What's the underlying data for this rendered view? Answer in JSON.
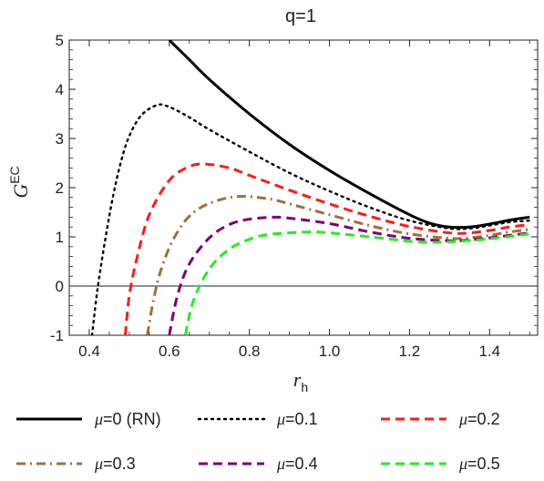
{
  "chart_data": {
    "type": "line",
    "title": "q=1",
    "xlabel": "r",
    "xlabel_sub": "h",
    "ylabel": "G",
    "ylabel_sup": "EC",
    "xlim": [
      0.35,
      1.52
    ],
    "ylim": [
      -1,
      5
    ],
    "xticks": [
      "0.4",
      "0.6",
      "0.8",
      "1.0",
      "1.2",
      "1.4"
    ],
    "yticks": [
      "-1",
      "0",
      "1",
      "2",
      "3",
      "4",
      "5"
    ],
    "legend_position": "bottom",
    "reference_line_y": 0,
    "series": [
      {
        "name": "μ=0 (RN)",
        "color": "#000000",
        "dash": "solid",
        "points": [
          [
            0.6,
            5.0
          ],
          [
            0.65,
            4.6
          ],
          [
            0.7,
            4.2
          ],
          [
            0.8,
            3.5
          ],
          [
            0.9,
            2.88
          ],
          [
            1.0,
            2.35
          ],
          [
            1.1,
            1.88
          ],
          [
            1.2,
            1.45
          ],
          [
            1.25,
            1.28
          ],
          [
            1.3,
            1.2
          ],
          [
            1.35,
            1.2
          ],
          [
            1.4,
            1.26
          ],
          [
            1.45,
            1.34
          ],
          [
            1.5,
            1.4
          ]
        ]
      },
      {
        "name": "μ=0.1",
        "color": "#000000",
        "dash": "dotted",
        "points": [
          [
            0.407,
            -1.0
          ],
          [
            0.42,
            -0.1
          ],
          [
            0.44,
            0.95
          ],
          [
            0.46,
            1.85
          ],
          [
            0.48,
            2.55
          ],
          [
            0.5,
            3.05
          ],
          [
            0.53,
            3.47
          ],
          [
            0.57,
            3.68
          ],
          [
            0.6,
            3.64
          ],
          [
            0.65,
            3.43
          ],
          [
            0.7,
            3.18
          ],
          [
            0.8,
            2.73
          ],
          [
            0.9,
            2.3
          ],
          [
            1.0,
            1.93
          ],
          [
            1.1,
            1.6
          ],
          [
            1.2,
            1.33
          ],
          [
            1.3,
            1.17
          ],
          [
            1.35,
            1.17
          ],
          [
            1.4,
            1.23
          ],
          [
            1.45,
            1.3
          ],
          [
            1.5,
            1.33
          ]
        ]
      },
      {
        "name": "μ=0.2",
        "color": "#ff1a1a",
        "dash": "dashed",
        "points": [
          [
            0.49,
            -1.0
          ],
          [
            0.5,
            -0.2
          ],
          [
            0.52,
            0.6
          ],
          [
            0.55,
            1.45
          ],
          [
            0.6,
            2.15
          ],
          [
            0.65,
            2.43
          ],
          [
            0.69,
            2.48
          ],
          [
            0.75,
            2.4
          ],
          [
            0.8,
            2.25
          ],
          [
            0.9,
            1.95
          ],
          [
            1.0,
            1.67
          ],
          [
            1.1,
            1.42
          ],
          [
            1.2,
            1.21
          ],
          [
            1.3,
            1.08
          ],
          [
            1.35,
            1.08
          ],
          [
            1.4,
            1.13
          ],
          [
            1.45,
            1.2
          ],
          [
            1.5,
            1.25
          ]
        ]
      },
      {
        "name": "μ=0.3",
        "color": "#a0703c",
        "dash": "dashdot",
        "points": [
          [
            0.545,
            -1.0
          ],
          [
            0.56,
            -0.3
          ],
          [
            0.58,
            0.35
          ],
          [
            0.61,
            0.95
          ],
          [
            0.65,
            1.42
          ],
          [
            0.7,
            1.68
          ],
          [
            0.77,
            1.82
          ],
          [
            0.85,
            1.77
          ],
          [
            0.9,
            1.67
          ],
          [
            1.0,
            1.45
          ],
          [
            1.1,
            1.23
          ],
          [
            1.2,
            1.06
          ],
          [
            1.3,
            0.97
          ],
          [
            1.35,
            0.98
          ],
          [
            1.4,
            1.03
          ],
          [
            1.45,
            1.1
          ],
          [
            1.5,
            1.15
          ]
        ]
      },
      {
        "name": "μ=0.4",
        "color": "#7a007a",
        "dash": "dashed",
        "points": [
          [
            0.6,
            -1.0
          ],
          [
            0.62,
            -0.2
          ],
          [
            0.65,
            0.45
          ],
          [
            0.7,
            0.98
          ],
          [
            0.75,
            1.25
          ],
          [
            0.8,
            1.36
          ],
          [
            0.86,
            1.4
          ],
          [
            0.9,
            1.38
          ],
          [
            1.0,
            1.27
          ],
          [
            1.1,
            1.1
          ],
          [
            1.2,
            0.97
          ],
          [
            1.3,
            0.92
          ],
          [
            1.35,
            0.94
          ],
          [
            1.4,
            0.98
          ],
          [
            1.45,
            1.03
          ],
          [
            1.5,
            1.08
          ]
        ]
      },
      {
        "name": "μ=0.5",
        "color": "#22ee22",
        "dash": "dashed",
        "points": [
          [
            0.64,
            -1.0
          ],
          [
            0.66,
            -0.3
          ],
          [
            0.7,
            0.35
          ],
          [
            0.75,
            0.75
          ],
          [
            0.8,
            0.95
          ],
          [
            0.85,
            1.05
          ],
          [
            0.95,
            1.1
          ],
          [
            1.0,
            1.08
          ],
          [
            1.1,
            1.0
          ],
          [
            1.2,
            0.91
          ],
          [
            1.25,
            0.89
          ],
          [
            1.3,
            0.9
          ],
          [
            1.4,
            0.96
          ],
          [
            1.5,
            1.06
          ]
        ]
      }
    ]
  }
}
